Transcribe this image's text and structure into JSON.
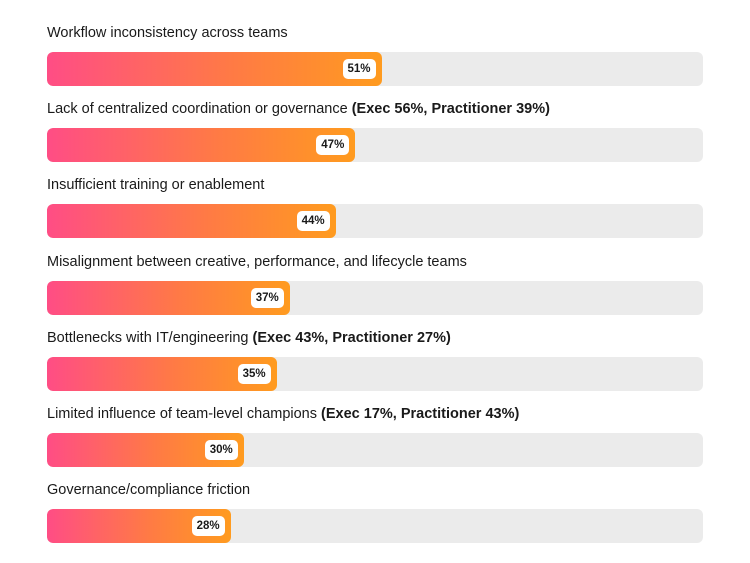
{
  "chart_data": {
    "type": "bar",
    "orientation": "horizontal",
    "xlim": [
      0,
      100
    ],
    "grid": false,
    "legend": "none",
    "colors": {
      "track": "#ebebeb",
      "fill_start": "#ff4d85",
      "fill_end": "#ff9b1f",
      "badge": "#ffffff"
    },
    "bars": [
      {
        "label": "Workflow inconsistency across teams",
        "note": "",
        "value": 51,
        "value_label": "51%"
      },
      {
        "label": "Lack of centralized coordination or governance",
        "note": "(Exec 56%, Practitioner 39%)",
        "value": 47,
        "value_label": "47%"
      },
      {
        "label": "Insufficient training or enablement",
        "note": "",
        "value": 44,
        "value_label": "44%"
      },
      {
        "label": "Misalignment between creative, performance, and lifecycle teams",
        "note": "",
        "value": 37,
        "value_label": "37%"
      },
      {
        "label": "Bottlenecks with IT/engineering",
        "note": "(Exec 43%, Practitioner 27%)",
        "value": 35,
        "value_label": "35%"
      },
      {
        "label": "Limited influence of team-level champions",
        "note": "(Exec 17%, Practitioner 43%)",
        "value": 30,
        "value_label": "30%"
      },
      {
        "label": "Governance/compliance friction",
        "note": "",
        "value": 28,
        "value_label": "28%"
      }
    ]
  }
}
